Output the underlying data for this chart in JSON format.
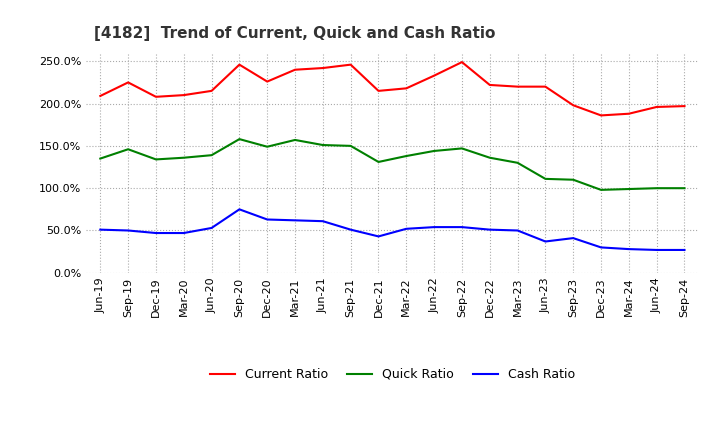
{
  "title": "[4182]  Trend of Current, Quick and Cash Ratio",
  "x_labels": [
    "Jun-19",
    "Sep-19",
    "Dec-19",
    "Mar-20",
    "Jun-20",
    "Sep-20",
    "Dec-20",
    "Mar-21",
    "Jun-21",
    "Sep-21",
    "Dec-21",
    "Mar-22",
    "Jun-22",
    "Sep-22",
    "Dec-22",
    "Mar-23",
    "Jun-23",
    "Sep-23",
    "Dec-23",
    "Mar-24",
    "Jun-24",
    "Sep-24"
  ],
  "current_ratio": [
    209,
    225,
    208,
    210,
    215,
    246,
    226,
    240,
    242,
    246,
    215,
    218,
    233,
    249,
    222,
    220,
    220,
    198,
    186,
    188,
    196,
    197
  ],
  "quick_ratio": [
    135,
    146,
    134,
    136,
    139,
    158,
    149,
    157,
    151,
    150,
    131,
    138,
    144,
    147,
    136,
    130,
    111,
    110,
    98,
    99,
    100,
    100
  ],
  "cash_ratio": [
    51,
    50,
    47,
    47,
    53,
    75,
    63,
    62,
    61,
    51,
    43,
    52,
    54,
    54,
    51,
    50,
    37,
    41,
    30,
    28,
    27,
    27
  ],
  "ylim": [
    0,
    260
  ],
  "yticks": [
    0,
    50,
    100,
    150,
    200,
    250
  ],
  "ytick_labels": [
    "0.0%",
    "50.0%",
    "100.0%",
    "150.0%",
    "200.0%",
    "250.0%"
  ],
  "current_color": "#ff0000",
  "quick_color": "#008000",
  "cash_color": "#0000ff",
  "bg_color": "#ffffff",
  "plot_bg_color": "#ffffff",
  "grid_color": "#aaaaaa",
  "line_width": 1.5,
  "title_fontsize": 11,
  "tick_fontsize": 8,
  "legend_fontsize": 9
}
